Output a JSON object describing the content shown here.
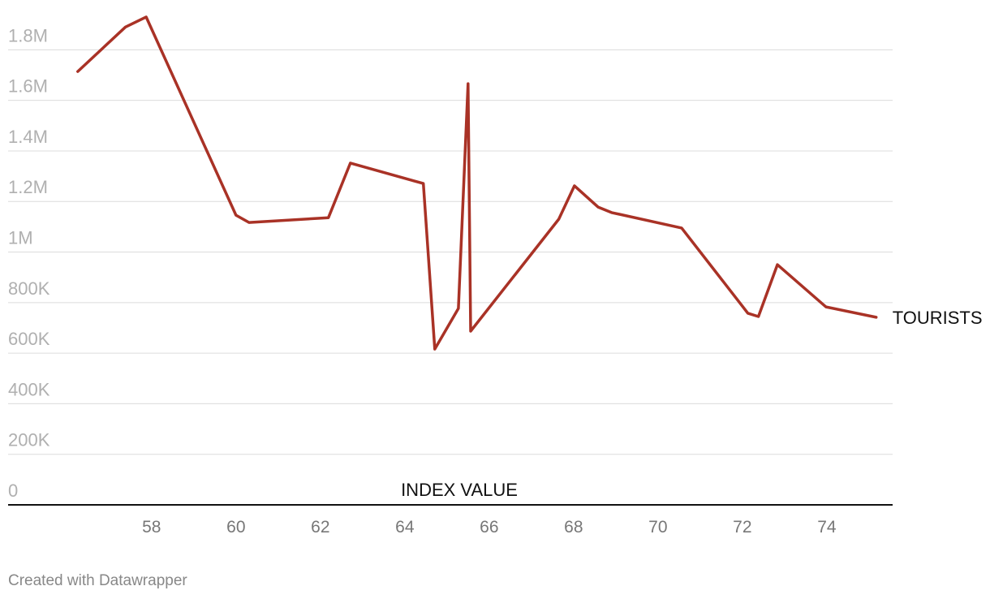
{
  "chart_data": {
    "type": "line",
    "x_label": "INDEX VALUE",
    "footer": "Created with Datawrapper",
    "x": [
      56.25,
      57.38,
      57.87,
      60.0,
      60.31,
      62.19,
      62.71,
      64.44,
      64.71,
      65.27,
      65.5,
      65.56,
      67.65,
      68.02,
      68.58,
      68.9,
      70.56,
      72.13,
      72.38,
      72.83,
      73.98,
      75.17
    ],
    "series": [
      {
        "name": "TOURISTS",
        "color": "#a93226",
        "values": [
          1714000,
          1890000,
          1930000,
          1146000,
          1117000,
          1136000,
          1352000,
          1271000,
          616000,
          777000,
          1666000,
          687000,
          1130000,
          1262000,
          1178000,
          1156000,
          1095000,
          758000,
          745000,
          950000,
          783000,
          742000
        ]
      }
    ],
    "xlim": [
      54.6,
      75.56
    ],
    "xticks": [
      58,
      60,
      62,
      64,
      66,
      68,
      70,
      72,
      74
    ],
    "ylim": [
      0,
      1997000
    ],
    "yticks": [
      {
        "value": 0,
        "label": "0"
      },
      {
        "value": 200000,
        "label": "200K"
      },
      {
        "value": 400000,
        "label": "400K"
      },
      {
        "value": 600000,
        "label": "600K"
      },
      {
        "value": 800000,
        "label": "800K"
      },
      {
        "value": 1000000,
        "label": "1M"
      },
      {
        "value": 1200000,
        "label": "1.2M"
      },
      {
        "value": 1400000,
        "label": "1.4M"
      },
      {
        "value": 1600000,
        "label": "1.6M"
      },
      {
        "value": 1800000,
        "label": "1.8M"
      }
    ],
    "grid": true
  }
}
